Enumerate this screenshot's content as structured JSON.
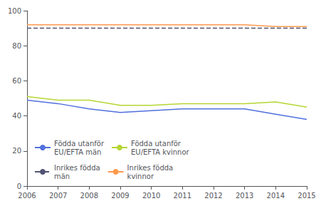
{
  "chart_data": {
    "type": "line",
    "x": [
      2006,
      2007,
      2008,
      2009,
      2010,
      2011,
      2012,
      2013,
      2014,
      2015
    ],
    "xlim": [
      2006,
      2015
    ],
    "xticks": [
      2006,
      2007,
      2008,
      2009,
      2010,
      2011,
      2012,
      2013,
      2014,
      2015
    ],
    "ylim": [
      0,
      100
    ],
    "yticks": [
      0,
      20,
      40,
      60,
      80,
      100
    ],
    "grid": false,
    "legend": "lower left",
    "series": [
      {
        "name": "Födda utanför\nEU/EFTA män",
        "line_style": "solid",
        "values": [
          49,
          47,
          44,
          42,
          43,
          44,
          44,
          44,
          41,
          38
        ]
      },
      {
        "name": "Födda utanför\nEU/EFTA kvinnor",
        "line_style": "solid",
        "values": [
          51,
          49,
          49,
          46,
          46,
          47,
          47,
          47,
          48,
          45
        ]
      },
      {
        "name": "Inrikes födda\nmän",
        "line_style": "dashed",
        "values": [
          90,
          90,
          90,
          90,
          90,
          90,
          90,
          90,
          90,
          90
        ]
      },
      {
        "name": "Inrikes födda\nkvinnor",
        "line_style": "solid",
        "values": [
          92,
          92,
          92,
          92,
          92,
          92,
          92,
          92,
          91,
          91
        ]
      }
    ]
  }
}
